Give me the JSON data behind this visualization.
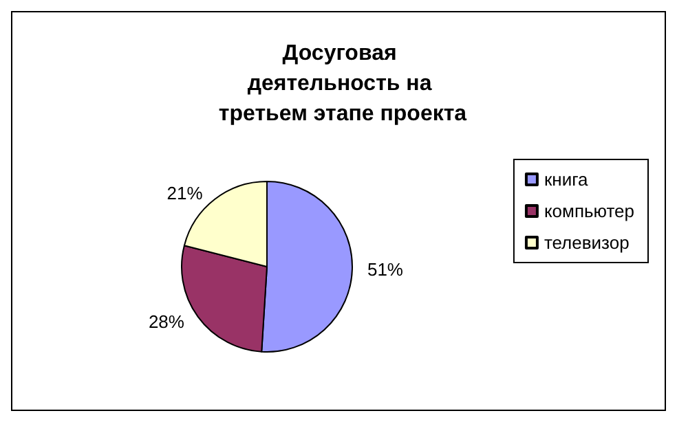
{
  "chart_data": {
    "type": "pie",
    "title": "Досуговая деятельность на третьем этапе проекта",
    "categories": [
      "книга",
      "компьютер",
      "телевизор"
    ],
    "values": [
      51,
      28,
      21
    ],
    "colors": [
      "#9999ff",
      "#993366",
      "#ffffcc"
    ],
    "value_labels": [
      "51%",
      "28%",
      "21%"
    ],
    "legend": "right"
  }
}
